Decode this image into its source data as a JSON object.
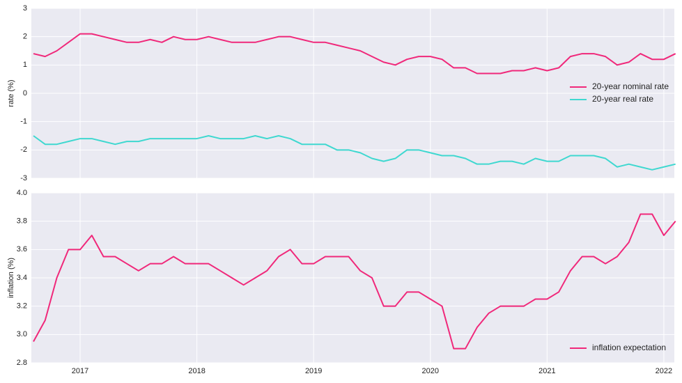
{
  "chart_data": [
    {
      "type": "line",
      "ylabel": "rate (%)",
      "x": [
        2016.6,
        2016.7,
        2016.8,
        2016.9,
        2017.0,
        2017.1,
        2017.2,
        2017.3,
        2017.4,
        2017.5,
        2017.6,
        2017.7,
        2017.8,
        2017.9,
        2018.0,
        2018.1,
        2018.2,
        2018.3,
        2018.4,
        2018.5,
        2018.6,
        2018.7,
        2018.8,
        2018.9,
        2019.0,
        2019.1,
        2019.2,
        2019.3,
        2019.4,
        2019.5,
        2019.6,
        2019.7,
        2019.8,
        2019.9,
        2020.0,
        2020.1,
        2020.2,
        2020.3,
        2020.4,
        2020.5,
        2020.6,
        2020.7,
        2020.8,
        2020.9,
        2021.0,
        2021.1,
        2021.2,
        2021.3,
        2021.4,
        2021.5,
        2021.6,
        2021.7,
        2021.8,
        2021.9,
        2022.0,
        2022.1
      ],
      "series": [
        {
          "name": "20-year nominal rate",
          "color": "#f0287a",
          "values": [
            1.4,
            1.3,
            1.5,
            1.8,
            2.1,
            2.1,
            2.0,
            1.9,
            1.8,
            1.8,
            1.9,
            1.8,
            2.0,
            1.9,
            1.9,
            2.0,
            1.9,
            1.8,
            1.8,
            1.8,
            1.9,
            2.0,
            2.0,
            1.9,
            1.8,
            1.8,
            1.7,
            1.6,
            1.5,
            1.3,
            1.1,
            1.0,
            1.2,
            1.3,
            1.3,
            1.2,
            0.9,
            0.9,
            0.7,
            0.7,
            0.7,
            0.8,
            0.8,
            0.9,
            0.8,
            0.9,
            1.3,
            1.4,
            1.4,
            1.3,
            1.0,
            1.1,
            1.4,
            1.2,
            1.2,
            1.4
          ]
        },
        {
          "name": "20-year real rate",
          "color": "#3fd8d0",
          "values": [
            -1.5,
            -1.8,
            -1.8,
            -1.7,
            -1.6,
            -1.6,
            -1.7,
            -1.8,
            -1.7,
            -1.7,
            -1.6,
            -1.6,
            -1.6,
            -1.6,
            -1.6,
            -1.5,
            -1.6,
            -1.6,
            -1.6,
            -1.5,
            -1.6,
            -1.5,
            -1.6,
            -1.8,
            -1.8,
            -1.8,
            -2.0,
            -2.0,
            -2.1,
            -2.3,
            -2.4,
            -2.3,
            -2.0,
            -2.0,
            -2.1,
            -2.2,
            -2.2,
            -2.3,
            -2.5,
            -2.5,
            -2.4,
            -2.4,
            -2.5,
            -2.3,
            -2.4,
            -2.4,
            -2.2,
            -2.2,
            -2.2,
            -2.3,
            -2.6,
            -2.5,
            -2.6,
            -2.7,
            -2.6,
            -2.5
          ]
        }
      ],
      "xlim": [
        2016.582,
        2022.09
      ],
      "xticks": [
        2017,
        2018,
        2019,
        2020,
        2021,
        2022
      ],
      "ylim": [
        -3,
        3
      ],
      "yticks": [
        3,
        2,
        1,
        0,
        -1,
        -2,
        -3
      ],
      "grid": true,
      "legend": "center right"
    },
    {
      "type": "line",
      "ylabel": "inflation (%)",
      "x": [
        2016.6,
        2016.7,
        2016.8,
        2016.9,
        2017.0,
        2017.1,
        2017.2,
        2017.3,
        2017.4,
        2017.5,
        2017.6,
        2017.7,
        2017.8,
        2017.9,
        2018.0,
        2018.1,
        2018.2,
        2018.3,
        2018.4,
        2018.5,
        2018.6,
        2018.7,
        2018.8,
        2018.9,
        2019.0,
        2019.1,
        2019.2,
        2019.3,
        2019.4,
        2019.5,
        2019.6,
        2019.7,
        2019.8,
        2019.9,
        2020.0,
        2020.1,
        2020.2,
        2020.3,
        2020.4,
        2020.5,
        2020.6,
        2020.7,
        2020.8,
        2020.9,
        2021.0,
        2021.1,
        2021.2,
        2021.3,
        2021.4,
        2021.5,
        2021.6,
        2021.7,
        2021.8,
        2021.9,
        2022.0,
        2022.1
      ],
      "series": [
        {
          "name": "inflation expectation",
          "color": "#f0287a",
          "values": [
            2.95,
            3.1,
            3.4,
            3.6,
            3.6,
            3.7,
            3.55,
            3.55,
            3.5,
            3.45,
            3.5,
            3.5,
            3.55,
            3.5,
            3.5,
            3.5,
            3.45,
            3.4,
            3.35,
            3.4,
            3.45,
            3.55,
            3.6,
            3.5,
            3.5,
            3.55,
            3.55,
            3.55,
            3.45,
            3.4,
            3.2,
            3.2,
            3.3,
            3.3,
            3.25,
            3.2,
            2.9,
            2.9,
            3.05,
            3.15,
            3.2,
            3.2,
            3.2,
            3.25,
            3.25,
            3.3,
            3.45,
            3.55,
            3.55,
            3.5,
            3.55,
            3.65,
            3.85,
            3.85,
            3.7,
            3.8
          ]
        }
      ],
      "xlim": [
        2016.582,
        2022.09
      ],
      "xticks": [
        2017,
        2018,
        2019,
        2020,
        2021,
        2022
      ],
      "ylim": [
        2.8,
        4.0
      ],
      "yticks": [
        {
          "value": 4.0,
          "label": "4.0"
        },
        3.8,
        3.6,
        3.4,
        3.2,
        {
          "value": 3.0,
          "label": "3.0"
        },
        2.8
      ],
      "grid": true,
      "legend": "lower right"
    }
  ]
}
